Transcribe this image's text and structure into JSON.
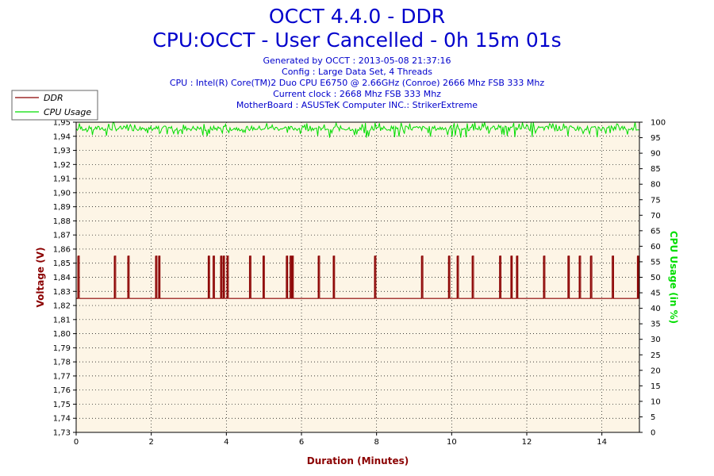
{
  "header": {
    "title_line1": "OCCT 4.4.0 - DDR",
    "title_line2": "CPU:OCCT - User Cancelled - 0h 15m 01s",
    "generated": "Generated by OCCT : 2013-05-08 21:37:16",
    "config": "Config : Large Data Set, 4 Threads",
    "cpu": "CPU : Intel(R) Core(TM)2 Duo CPU E6750 @ 2.66GHz (Conroe) 2666 Mhz FSB 333 Mhz",
    "clock": "Current clock : 2668 Mhz FSB 333 Mhz",
    "motherboard": "MotherBoard : ASUSTeK Computer INC.: StrikerExtreme"
  },
  "colors": {
    "ddr": "#8b0000",
    "cpu": "#00dd00",
    "plot_bg": "#fdf5e6",
    "title": "#0000cc"
  },
  "chart_data": {
    "type": "line",
    "xlabel": "Duration (Minutes)",
    "ylabel": "Voltage (V)",
    "y2label": "CPU Usage (in %)",
    "xlim": [
      0,
      15
    ],
    "ylim": [
      1.73,
      1.95
    ],
    "y2lim": [
      0,
      100
    ],
    "x_ticks": [
      0,
      2,
      4,
      6,
      8,
      10,
      12,
      14
    ],
    "y_ticks": [
      "1,73",
      "1,74",
      "1,75",
      "1,76",
      "1,77",
      "1,78",
      "1,79",
      "1,80",
      "1,81",
      "1,82",
      "1,83",
      "1,84",
      "1,85",
      "1,86",
      "1,87",
      "1,88",
      "1,89",
      "1,90",
      "1,91",
      "1,92",
      "1,93",
      "1,94",
      "1,95"
    ],
    "y2_ticks": [
      0,
      5,
      10,
      15,
      20,
      25,
      30,
      35,
      40,
      45,
      50,
      55,
      60,
      65,
      70,
      75,
      80,
      85,
      90,
      95,
      100
    ],
    "grid": true,
    "legend_position": "top-left",
    "series": [
      {
        "name": "DDR",
        "axis": "left",
        "baseline": 1.825,
        "spike_high": 1.855,
        "spikes_x": [
          0.05,
          1.02,
          1.38,
          2.12,
          2.2,
          3.52,
          3.65,
          3.85,
          3.92,
          4.02,
          4.62,
          4.98,
          5.6,
          5.7,
          5.75,
          6.45,
          6.85,
          7.95,
          9.2,
          9.92,
          10.15,
          10.55,
          11.28,
          11.58,
          11.73,
          12.45,
          13.1,
          13.4,
          13.7,
          14.28,
          14.95
        ]
      },
      {
        "name": "CPU Usage",
        "axis": "right",
        "typical": 98,
        "dip_min": 95
      }
    ]
  }
}
